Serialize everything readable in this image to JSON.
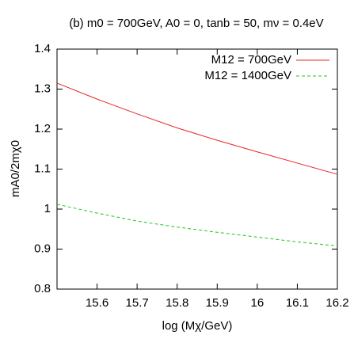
{
  "chart_data": {
    "type": "line",
    "title": "(b)  m0 = 700GeV, A0 = 0, tanb = 50, mν = 0.4eV",
    "x_label": "log (Mχ/GeV)",
    "y_label": "mA0/2mχ0",
    "x": [
      15.5,
      15.6,
      15.7,
      15.8,
      15.9,
      16.0,
      16.1,
      16.2
    ],
    "series": [
      {
        "name": "M12 = 700GeV",
        "color": "#e8262a",
        "dashed": false,
        "values": [
          1.315,
          1.275,
          1.238,
          1.203,
          1.172,
          1.143,
          1.115,
          1.087
        ]
      },
      {
        "name": "M12 = 1400GeV",
        "color": "#22c422",
        "dashed": true,
        "values": [
          1.012,
          0.99,
          0.97,
          0.955,
          0.942,
          0.93,
          0.918,
          0.908
        ]
      }
    ],
    "xlim": [
      15.5,
      16.2
    ],
    "xticks": [
      15.6,
      15.7,
      15.8,
      15.9,
      16,
      16.1,
      16.2
    ],
    "ylim": [
      0.8,
      1.4
    ],
    "yticks": [
      0.8,
      0.9,
      1,
      1.1,
      1.2,
      1.3,
      1.4
    ],
    "legend": "top-right",
    "grid": false
  }
}
